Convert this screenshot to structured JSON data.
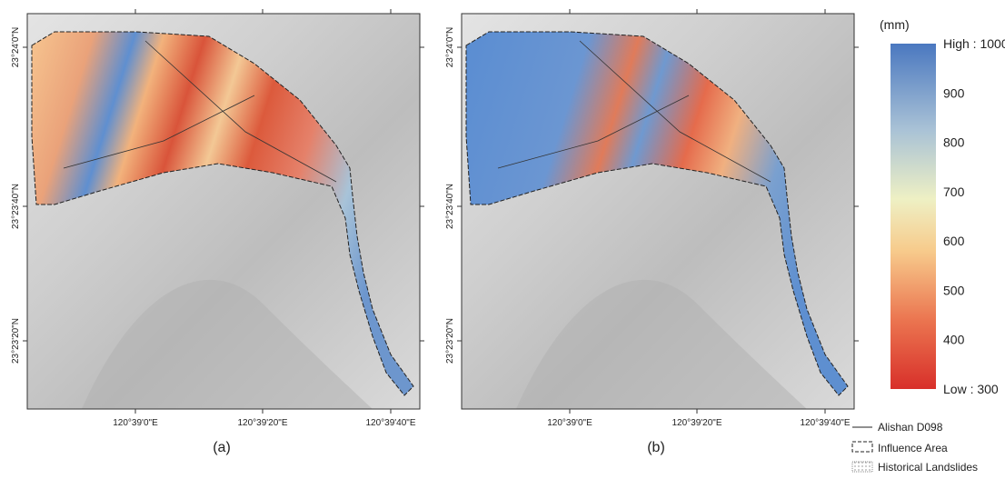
{
  "panels": [
    {
      "label": "(a)",
      "x_ticks": [
        "120°39'0\"E",
        "120°39'20\"E",
        "120°39'40\"E"
      ],
      "y_ticks": [
        "23°24'0\"N",
        "23°23'40\"N",
        "23°23'20\"N"
      ]
    },
    {
      "label": "(b)",
      "x_ticks": [
        "120°39'0\"E",
        "120°39'20\"E",
        "120°39'40\"E"
      ],
      "y_ticks": [
        "23°24'0\"N",
        "23°23'40\"N",
        "23°23'20\"N"
      ]
    }
  ],
  "colorbar": {
    "unit": "(mm)",
    "ticks": [
      {
        "value": 1000,
        "label": "High : 1000"
      },
      900,
      800,
      700,
      600,
      500,
      400,
      {
        "value": 300,
        "label": "Low : 300"
      }
    ]
  },
  "legend": [
    "Alishan D098",
    "Influence Area",
    "Historical Landslides"
  ]
}
